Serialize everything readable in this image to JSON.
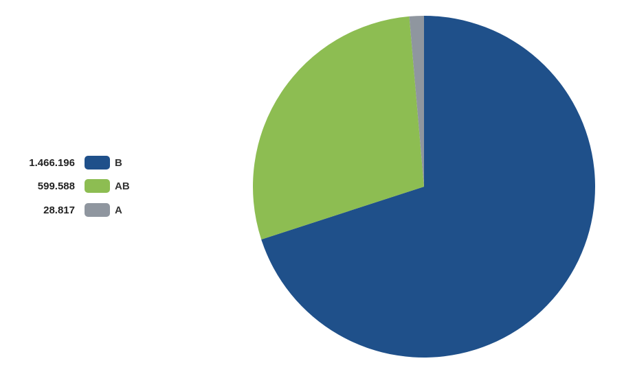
{
  "chart_data": {
    "type": "pie",
    "categories": [
      "B",
      "AB",
      "A"
    ],
    "values": [
      1466196,
      599588,
      28817
    ],
    "value_labels": [
      "1.466.196",
      "599.588",
      "28.817"
    ],
    "colors": [
      "#1f508a",
      "#8dbd52",
      "#8f969f"
    ],
    "legend_position": "left",
    "start_angle": "12 o'clock",
    "direction": "clockwise"
  }
}
